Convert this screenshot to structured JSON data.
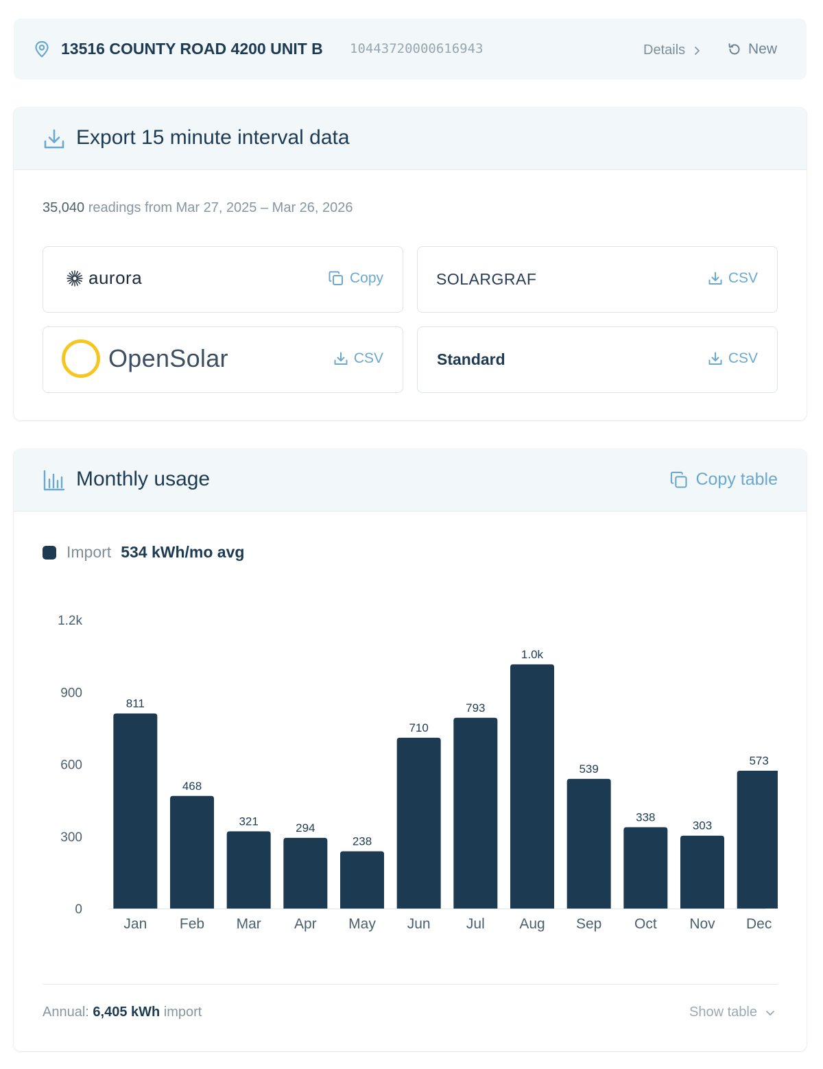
{
  "location": {
    "address": "13516 COUNTY ROAD 4200 UNIT B",
    "meter_id": "10443720000616943",
    "details_label": "Details",
    "new_label": "New"
  },
  "export": {
    "title": "Export 15 minute interval data",
    "readings_count": "35,040",
    "readings_text": "readings from Mar 27, 2025 – Mar 26, 2026",
    "tiles": [
      {
        "name": "aurora",
        "logo_text": "aurora",
        "action": "Copy",
        "action_icon": "copy-icon"
      },
      {
        "name": "solargraf",
        "logo_text": "SOLARGRAF",
        "action": "CSV",
        "action_icon": "download-icon"
      },
      {
        "name": "opensolar",
        "logo_text": "OpenSolar",
        "action": "CSV",
        "action_icon": "download-icon"
      },
      {
        "name": "standard",
        "logo_text": "Standard",
        "action": "CSV",
        "action_icon": "download-icon"
      }
    ]
  },
  "usage": {
    "title": "Monthly usage",
    "copy_table_label": "Copy table",
    "legend_label": "Import",
    "legend_avg": "534 kWh/mo avg",
    "annual_prefix": "Annual:",
    "annual_value": "6,405 kWh",
    "annual_suffix": "import",
    "show_table_label": "Show table"
  },
  "colors": {
    "bar": "#1c3a52",
    "accent": "#6aa8d0",
    "header_bg": "#f2f7fa"
  },
  "chart_data": {
    "type": "bar",
    "categories": [
      "Jan",
      "Feb",
      "Mar",
      "Apr",
      "May",
      "Jun",
      "Jul",
      "Aug",
      "Sep",
      "Oct",
      "Nov",
      "Dec"
    ],
    "series": [
      {
        "name": "Import",
        "values": [
          811,
          468,
          321,
          294,
          238,
          710,
          793,
          1015,
          539,
          338,
          303,
          573
        ],
        "labels": [
          "811",
          "468",
          "321",
          "294",
          "238",
          "710",
          "793",
          "1.0k",
          "539",
          "338",
          "303",
          "573"
        ]
      }
    ],
    "ylim": [
      0,
      1200
    ],
    "yticks": [
      0,
      300,
      600,
      900,
      1200
    ],
    "ytick_labels": [
      "0",
      "300",
      "600",
      "900",
      "1.2k"
    ],
    "grid": false,
    "legend": "top-left"
  }
}
